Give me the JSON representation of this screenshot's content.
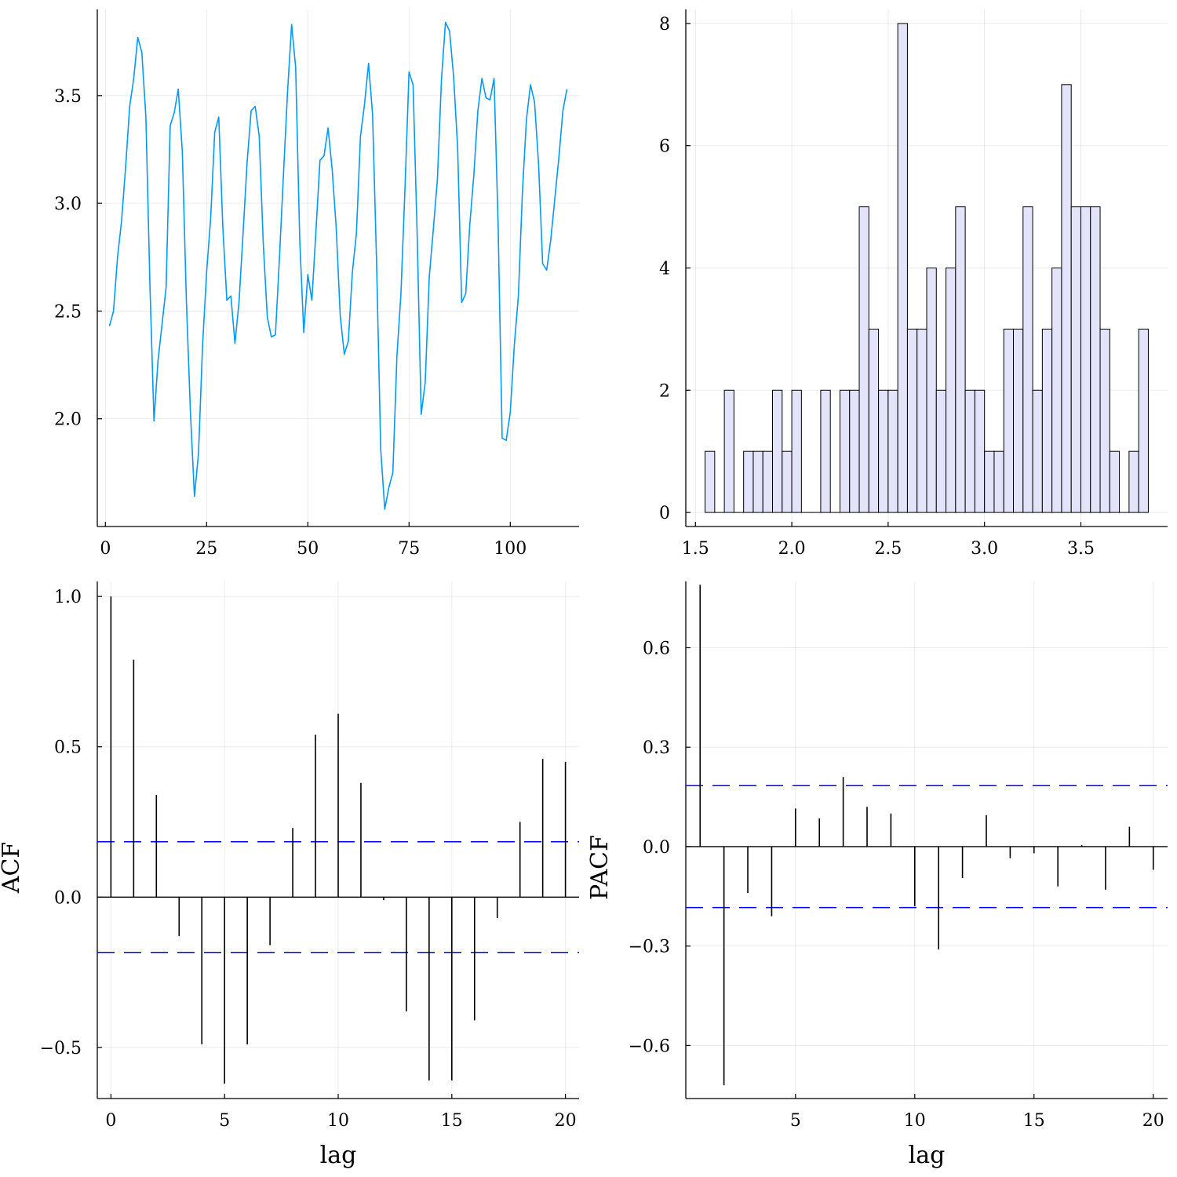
{
  "colors": {
    "line": "#009af9",
    "bar_fill": "#e3e3fa",
    "bar_stroke": "#000000",
    "stem": "#000000",
    "conf": "#0000ff",
    "zero": "#000000"
  },
  "chart_data": [
    {
      "type": "line",
      "title": "",
      "xlabel": "",
      "ylabel": "",
      "xlim": [
        -2,
        117
      ],
      "ylim": [
        1.5,
        3.9
      ],
      "xticks": [
        0,
        25,
        50,
        75,
        100
      ],
      "xtick_labels": [
        "0",
        "25",
        "50",
        "75",
        "100"
      ],
      "yticks": [
        2.0,
        2.5,
        3.0,
        3.5
      ],
      "ytick_labels": [
        "2.0",
        "2.5",
        "3.0",
        "3.5"
      ],
      "grid": true,
      "legend": "none",
      "series": [
        {
          "x": [
            1,
            2,
            3,
            4,
            5,
            6,
            7,
            8,
            9,
            10,
            11,
            12,
            13,
            14,
            15,
            16,
            17,
            18,
            19,
            20,
            21,
            22,
            23,
            24,
            25,
            26,
            27,
            28,
            29,
            30,
            31,
            32,
            33,
            34,
            35,
            36,
            37,
            38,
            39,
            40,
            41,
            42,
            43,
            44,
            45,
            46,
            47,
            48,
            49,
            50,
            51,
            52,
            53,
            54,
            55,
            56,
            57,
            58,
            59,
            60,
            61,
            62,
            63,
            64,
            65,
            66,
            67,
            68,
            69,
            70,
            71,
            72,
            73,
            74,
            75,
            76,
            77,
            78,
            79,
            80,
            81,
            82,
            83,
            84,
            85,
            86,
            87,
            88,
            89,
            90,
            91,
            92,
            93,
            94,
            95,
            96,
            97,
            98,
            99,
            100,
            101,
            102,
            103,
            104,
            105,
            106,
            107,
            108,
            109,
            110,
            111,
            112,
            113,
            114
          ],
          "y": [
            2.43,
            2.5,
            2.75,
            2.92,
            3.17,
            3.45,
            3.58,
            3.77,
            3.7,
            3.4,
            2.62,
            1.99,
            2.27,
            2.44,
            2.61,
            3.36,
            3.42,
            3.53,
            3.24,
            2.55,
            2.03,
            1.64,
            1.84,
            2.34,
            2.68,
            2.93,
            3.33,
            3.4,
            2.89,
            2.55,
            2.57,
            2.35,
            2.54,
            2.86,
            3.19,
            3.43,
            3.45,
            3.31,
            2.81,
            2.47,
            2.38,
            2.39,
            2.75,
            3.14,
            3.52,
            3.83,
            3.63,
            2.83,
            2.4,
            2.67,
            2.55,
            2.87,
            3.2,
            3.22,
            3.35,
            3.16,
            2.89,
            2.48,
            2.3,
            2.36,
            2.68,
            2.86,
            3.31,
            3.46,
            3.65,
            3.41,
            2.71,
            1.86,
            1.58,
            1.68,
            1.75,
            2.29,
            2.58,
            3.07,
            3.61,
            3.55,
            2.86,
            2.02,
            2.17,
            2.66,
            2.88,
            3.11,
            3.57,
            3.84,
            3.8,
            3.59,
            3.26,
            2.54,
            2.58,
            2.9,
            3.13,
            3.43,
            3.58,
            3.49,
            3.48,
            3.58,
            2.9,
            1.91,
            1.9,
            2.03,
            2.34,
            2.57,
            3.05,
            3.39,
            3.55,
            3.47,
            3.18,
            2.72,
            2.69,
            2.83,
            3.02,
            3.21,
            3.43,
            3.53
          ]
        }
      ]
    },
    {
      "type": "bar",
      "title": "",
      "xlabel": "",
      "ylabel": "",
      "bin_width": 0.05,
      "xlim": [
        1.45,
        3.95
      ],
      "ylim": [
        -0.23,
        8.23
      ],
      "xticks": [
        1.5,
        2.0,
        2.5,
        3.0,
        3.5
      ],
      "xtick_labels": [
        "1.5",
        "2.0",
        "2.5",
        "3.0",
        "3.5"
      ],
      "yticks": [
        0,
        2,
        4,
        6,
        8
      ],
      "ytick_labels": [
        "0",
        "2",
        "4",
        "6",
        "8"
      ],
      "grid": true,
      "legend": "none",
      "bins": [
        1.55,
        1.6,
        1.65,
        1.7,
        1.75,
        1.8,
        1.85,
        1.9,
        1.95,
        2.0,
        2.05,
        2.1,
        2.15,
        2.2,
        2.25,
        2.3,
        2.35,
        2.4,
        2.45,
        2.5,
        2.55,
        2.6,
        2.65,
        2.7,
        2.75,
        2.8,
        2.85,
        2.9,
        2.95,
        3.0,
        3.05,
        3.1,
        3.15,
        3.2,
        3.25,
        3.3,
        3.35,
        3.4,
        3.45,
        3.5,
        3.55,
        3.6,
        3.65,
        3.7,
        3.75,
        3.8
      ],
      "values": [
        1,
        0,
        2,
        0,
        1,
        1,
        1,
        2,
        1,
        2,
        0,
        0,
        2,
        0,
        2,
        2,
        5,
        3,
        2,
        2,
        8,
        3,
        3,
        4,
        2,
        4,
        5,
        2,
        2,
        1,
        1,
        3,
        3,
        5,
        2,
        3,
        4,
        7,
        5,
        5,
        5,
        3,
        1,
        0,
        1,
        3
      ]
    },
    {
      "type": "bar",
      "title": "",
      "xlabel": "lag",
      "ylabel": "ACF",
      "xlim": [
        -0.6,
        20.6
      ],
      "ylim": [
        -0.67,
        1.05
      ],
      "xticks": [
        0,
        5,
        10,
        15,
        20
      ],
      "xtick_labels": [
        "0",
        "5",
        "10",
        "15",
        "20"
      ],
      "yticks": [
        -0.5,
        0.0,
        0.5,
        1.0
      ],
      "ytick_labels": [
        "−0.5",
        "0.0",
        "0.5",
        "1.0"
      ],
      "grid": true,
      "legend": "none",
      "confidence": [
        0.184,
        -0.184
      ],
      "x": [
        0,
        1,
        2,
        3,
        4,
        5,
        6,
        7,
        8,
        9,
        10,
        11,
        12,
        13,
        14,
        15,
        16,
        17,
        18,
        19,
        20
      ],
      "values": [
        1.0,
        0.79,
        0.34,
        -0.13,
        -0.49,
        -0.62,
        -0.49,
        -0.16,
        0.23,
        0.54,
        0.61,
        0.38,
        -0.01,
        -0.38,
        -0.61,
        -0.61,
        -0.41,
        -0.07,
        0.25,
        0.46,
        0.45
      ]
    },
    {
      "type": "bar",
      "title": "",
      "xlabel": "lag",
      "ylabel": "PACF",
      "xlim": [
        0.4,
        20.6
      ],
      "ylim": [
        -0.76,
        0.8
      ],
      "xticks": [
        5,
        10,
        15,
        20
      ],
      "xtick_labels": [
        "5",
        "10",
        "15",
        "20"
      ],
      "yticks": [
        -0.6,
        -0.3,
        0.0,
        0.3,
        0.6
      ],
      "ytick_labels": [
        "−0.6",
        "−0.3",
        "0.0",
        "0.3",
        "0.6"
      ],
      "grid": true,
      "legend": "none",
      "confidence": [
        0.184,
        -0.184
      ],
      "x": [
        1,
        2,
        3,
        4,
        5,
        6,
        7,
        8,
        9,
        10,
        11,
        12,
        13,
        14,
        15,
        16,
        17,
        18,
        19,
        20
      ],
      "values": [
        0.79,
        -0.72,
        -0.14,
        -0.21,
        0.115,
        0.085,
        0.21,
        0.12,
        0.1,
        -0.18,
        -0.31,
        -0.095,
        0.095,
        -0.035,
        -0.02,
        -0.12,
        0.005,
        -0.13,
        0.06,
        -0.07
      ]
    }
  ]
}
